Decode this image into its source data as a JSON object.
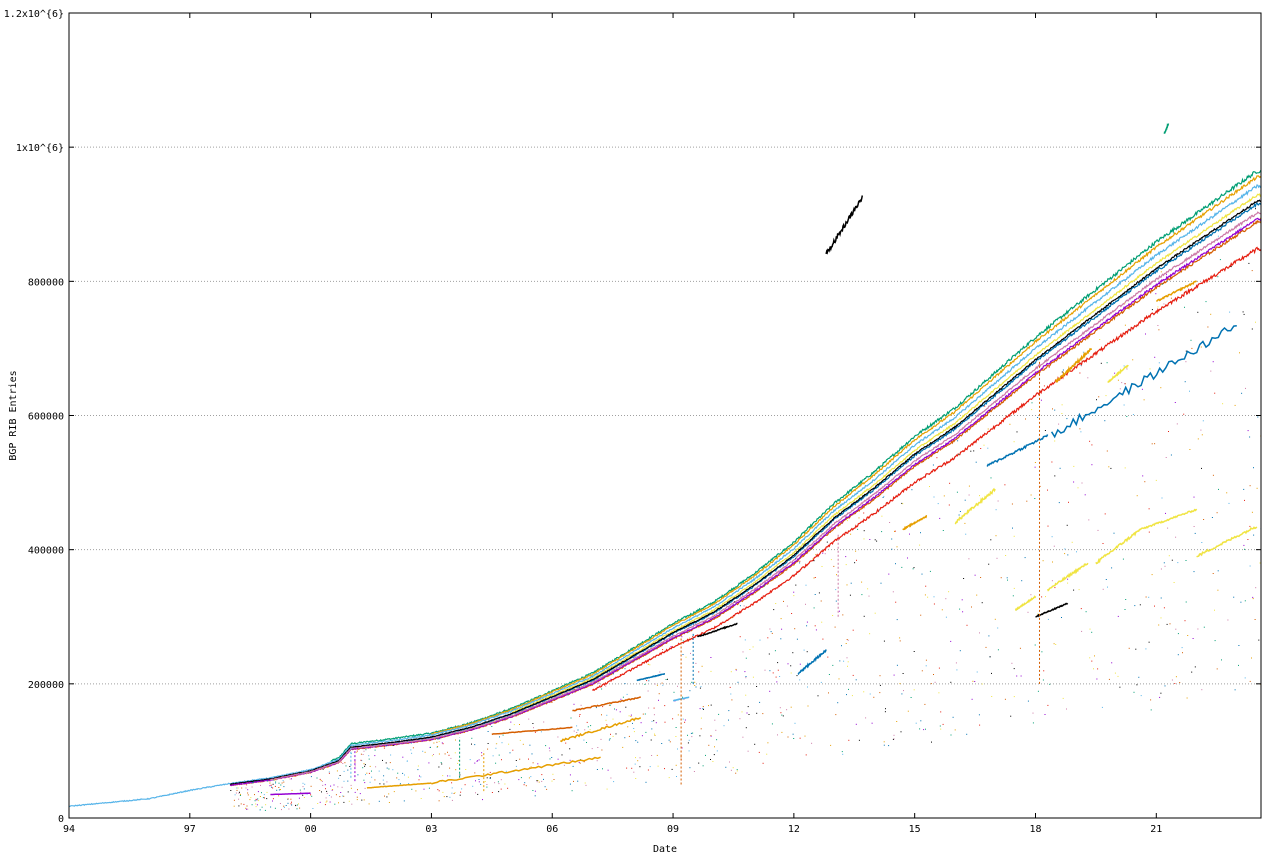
{
  "chart_data": {
    "type": "scatter",
    "xlabel": "Date",
    "ylabel": "BGP RIB Entries",
    "x_ticks": [
      {
        "value": 1994,
        "label": "94"
      },
      {
        "value": 1997,
        "label": "97"
      },
      {
        "value": 2000,
        "label": "00"
      },
      {
        "value": 2003,
        "label": "03"
      },
      {
        "value": 2006,
        "label": "06"
      },
      {
        "value": 2009,
        "label": "09"
      },
      {
        "value": 2012,
        "label": "12"
      },
      {
        "value": 2015,
        "label": "15"
      },
      {
        "value": 2018,
        "label": "18"
      },
      {
        "value": 2021,
        "label": "21"
      }
    ],
    "y_ticks": [
      {
        "value": 0,
        "label": "0"
      },
      {
        "value": 200000,
        "label": "200000"
      },
      {
        "value": 400000,
        "label": "400000"
      },
      {
        "value": 600000,
        "label": "600000"
      },
      {
        "value": 800000,
        "label": "800000"
      },
      {
        "value": 1000000,
        "label": "1x10^{6}"
      },
      {
        "value": 1200000,
        "label": "1.2x10^{6}"
      }
    ],
    "xlim": [
      1994,
      2023.6
    ],
    "ylim": [
      0,
      1200000
    ],
    "grid": "horizontal dotted",
    "main_curve": {
      "x": [
        1994,
        1996,
        1997,
        1998,
        1999,
        2000,
        2000.7,
        2001.0,
        2002,
        2003,
        2004,
        2005,
        2006,
        2007,
        2008,
        2009,
        2010,
        2011,
        2012,
        2013,
        2014,
        2015,
        2016,
        2017,
        2018,
        2019,
        2020,
        2021,
        2022,
        2023.5
      ],
      "y": [
        17000,
        28000,
        40000,
        50000,
        58000,
        70000,
        85000,
        105000,
        112000,
        120000,
        135000,
        155000,
        180000,
        205000,
        240000,
        275000,
        305000,
        345000,
        390000,
        445000,
        490000,
        540000,
        580000,
        630000,
        680000,
        725000,
        770000,
        815000,
        855000,
        915000
      ]
    },
    "series": [
      {
        "color": "#009e73",
        "offset": 22000,
        "from": 2000.5,
        "to": 2023.6,
        "jitter": 4000
      },
      {
        "color": "#e69f00",
        "offset": 18000,
        "from": 2003,
        "to": 2023.6,
        "jitter": 3000
      },
      {
        "color": "#56b4e9",
        "offset": 12000,
        "from": 1994,
        "to": 2023.6,
        "jitter": 3000
      },
      {
        "color": "#f0e442",
        "offset": 6000,
        "from": 2005,
        "to": 2023.6,
        "jitter": 2500
      },
      {
        "color": "#0072b2",
        "offset": 0,
        "from": 1998,
        "to": 2023.6,
        "jitter": 3000
      },
      {
        "color": "#000000",
        "offset": 2000,
        "from": 1998,
        "to": 2023.6,
        "jitter": 2000
      },
      {
        "color": "#d55e00",
        "offset": -12000,
        "from": 1998,
        "to": 2023.6,
        "jitter": 3000
      },
      {
        "color": "#9400d3",
        "offset": -10000,
        "from": 1998,
        "to": 2023.6,
        "jitter": 2500
      },
      {
        "color": "#cc79a7",
        "offset": -6000,
        "from": 1999,
        "to": 2023.6,
        "jitter": 2500
      },
      {
        "color": "#e51e10",
        "offset": -30000,
        "from": 2007,
        "to": 2023.6,
        "jitter": 4000
      }
    ],
    "fragments": [
      {
        "color": "#000000",
        "x": [
          2012.8,
          2013.7
        ],
        "y": [
          840000,
          925000
        ]
      },
      {
        "color": "#009e73",
        "x": [
          2021.2,
          2021.3
        ],
        "y": [
          1020000,
          1035000
        ]
      },
      {
        "color": "#0072b2",
        "x": [
          2018.4,
          2023.0
        ],
        "y": [
          570000,
          735000
        ]
      },
      {
        "color": "#0072b2",
        "x": [
          2016.8,
          2018.3
        ],
        "y": [
          525000,
          570000
        ]
      },
      {
        "color": "#0072b2",
        "x": [
          2012.1,
          2012.8
        ],
        "y": [
          215000,
          250000
        ]
      },
      {
        "color": "#e69f00",
        "x": [
          2001.4,
          2003.0
        ],
        "y": [
          45000,
          52000
        ]
      },
      {
        "color": "#e69f00",
        "x": [
          2003.0,
          2007.2
        ],
        "y": [
          52000,
          90000
        ]
      },
      {
        "color": "#e69f00",
        "x": [
          2006.2,
          2008.2
        ],
        "y": [
          115000,
          150000
        ]
      },
      {
        "color": "#e69f00",
        "x": [
          2014.7,
          2015.3
        ],
        "y": [
          430000,
          450000
        ]
      },
      {
        "color": "#e69f00",
        "x": [
          2018.5,
          2019.4
        ],
        "y": [
          650000,
          700000
        ]
      },
      {
        "color": "#e69f00",
        "x": [
          2021.0,
          2022.0
        ],
        "y": [
          770000,
          800000
        ]
      },
      {
        "color": "#f0e442",
        "x": [
          2016.0,
          2017.0
        ],
        "y": [
          440000,
          490000
        ]
      },
      {
        "color": "#f0e442",
        "x": [
          2017.5,
          2018.0
        ],
        "y": [
          310000,
          330000
        ]
      },
      {
        "color": "#f0e442",
        "x": [
          2018.3,
          2019.3
        ],
        "y": [
          340000,
          380000
        ]
      },
      {
        "color": "#f0e442",
        "x": [
          2019.5,
          2020.6
        ],
        "y": [
          380000,
          430000
        ]
      },
      {
        "color": "#f0e442",
        "x": [
          2020.6,
          2022.0
        ],
        "y": [
          430000,
          460000
        ]
      },
      {
        "color": "#f0e442",
        "x": [
          2022.0,
          2023.5
        ],
        "y": [
          390000,
          435000
        ]
      },
      {
        "color": "#f0e442",
        "x": [
          2019.8,
          2020.3
        ],
        "y": [
          650000,
          675000
        ]
      },
      {
        "color": "#d55e00",
        "x": [
          2004.5,
          2006.5
        ],
        "y": [
          125000,
          135000
        ]
      },
      {
        "color": "#d55e00",
        "x": [
          2006.5,
          2008.2
        ],
        "y": [
          160000,
          180000
        ]
      },
      {
        "color": "#000000",
        "x": [
          2009.6,
          2010.6
        ],
        "y": [
          270000,
          290000
        ]
      },
      {
        "color": "#000000",
        "x": [
          2018.0,
          2018.8
        ],
        "y": [
          300000,
          320000
        ]
      },
      {
        "color": "#9400d3",
        "x": [
          1999.0,
          2000.0
        ],
        "y": [
          35000,
          37000
        ]
      },
      {
        "color": "#0072b2",
        "x": [
          2008.1,
          2008.8
        ],
        "y": [
          205000,
          215000
        ]
      },
      {
        "color": "#56b4e9",
        "x": [
          2009.0,
          2009.4
        ],
        "y": [
          175000,
          180000
        ]
      }
    ],
    "spikes": [
      {
        "color": "#56b4e9",
        "x": 2001.0,
        "y1": 60000,
        "y2": 110000
      },
      {
        "color": "#9400d3",
        "x": 2001.1,
        "y1": 55000,
        "y2": 105000
      },
      {
        "color": "#e69f00",
        "x": 2004.3,
        "y1": 40000,
        "y2": 100000
      },
      {
        "color": "#d55e00",
        "x": 2009.2,
        "y1": 50000,
        "y2": 270000
      },
      {
        "color": "#cc79a7",
        "x": 2013.1,
        "y1": 300000,
        "y2": 425000
      },
      {
        "color": "#d55e00",
        "x": 2018.1,
        "y1": 200000,
        "y2": 680000
      },
      {
        "color": "#009e73",
        "x": 2003.7,
        "y1": 60000,
        "y2": 120000
      },
      {
        "color": "#0072b2",
        "x": 2009.5,
        "y1": 200000,
        "y2": 275000
      }
    ]
  }
}
